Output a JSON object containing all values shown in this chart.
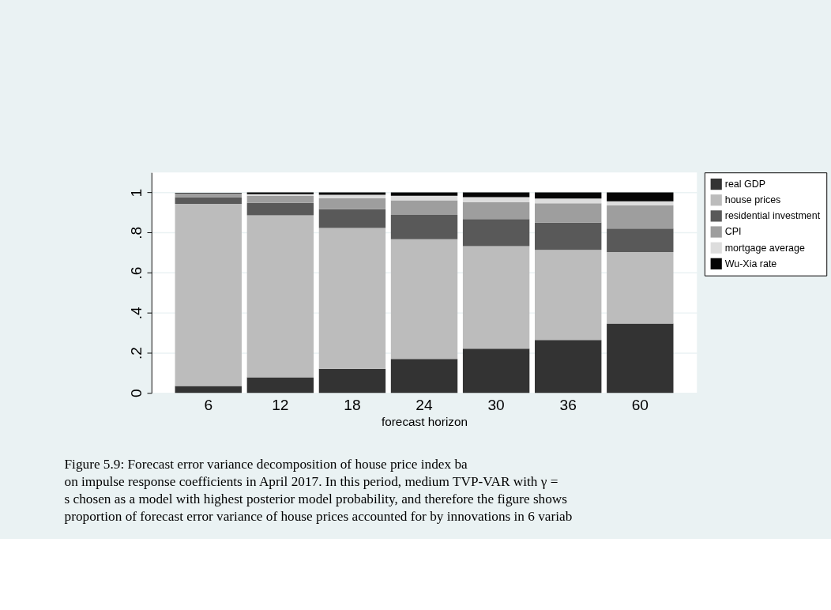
{
  "chart_data": {
    "type": "bar",
    "stacked": true,
    "xlabel": "forecast horizon",
    "categories": [
      "6",
      "12",
      "18",
      "24",
      "30",
      "36",
      "60"
    ],
    "ylim": [
      0,
      1.1
    ],
    "yticks": [
      {
        "value": 0,
        "label": "0"
      },
      {
        "value": 0.2,
        "label": ".2"
      },
      {
        "value": 0.4,
        "label": ".4"
      },
      {
        "value": 0.6,
        "label": ".6"
      },
      {
        "value": 0.8,
        "label": ".8"
      },
      {
        "value": 1,
        "label": "1"
      }
    ],
    "grid": "y",
    "legend": "right",
    "series": [
      {
        "name": "real GDP",
        "color": "#333333",
        "values": [
          0.035,
          0.078,
          0.12,
          0.17,
          0.221,
          0.264,
          0.346
        ]
      },
      {
        "name": "house prices",
        "color": "#bcbcbc",
        "values": [
          0.908,
          0.808,
          0.703,
          0.597,
          0.511,
          0.45,
          0.357
        ]
      },
      {
        "name": "residential investment",
        "color": "#595959",
        "values": [
          0.034,
          0.062,
          0.094,
          0.121,
          0.135,
          0.136,
          0.117
        ]
      },
      {
        "name": "CPI",
        "color": "#9e9e9e",
        "values": [
          0.018,
          0.036,
          0.055,
          0.073,
          0.084,
          0.096,
          0.116
        ]
      },
      {
        "name": "mortgage average",
        "color": "#dddddd",
        "values": [
          null,
          0.008,
          0.017,
          0.023,
          0.026,
          0.024,
          0.02
        ]
      },
      {
        "name": "Wu-Xia rate",
        "color": "#050505",
        "values": [
          0.003,
          0.008,
          0.011,
          0.016,
          0.023,
          0.03,
          0.044
        ]
      }
    ],
    "annotations": [
      "Figure 5.9: Forecast error variance decomposition of house price index ba",
      "on impulse response coefficients in April 2017. In this period, medium TVP-VAR with γ =",
      "s chosen as a model with highest posterior model probability, and therefore the figure shows",
      "proportion of forecast error variance of house prices accounted for by innovations in 6 variab"
    ]
  }
}
